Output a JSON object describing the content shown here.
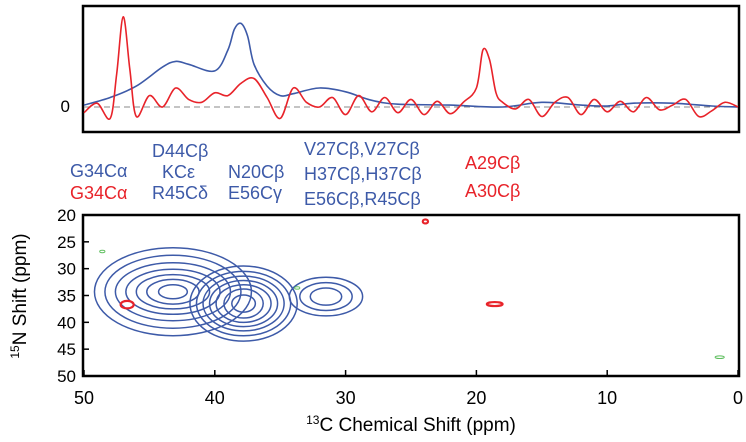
{
  "colors": {
    "blue": "#3d5aa8",
    "red": "#e8232a",
    "green": "#5fbf5f",
    "frame": "#000000",
    "zero_line": "#888888"
  },
  "chart_data": [
    {
      "type": "line",
      "panel": "1D slices",
      "x_range": [
        50,
        0
      ],
      "zero_label": "0",
      "series": [
        {
          "color": "blue",
          "x": [
            50,
            48,
            46,
            44,
            43,
            42,
            40,
            39,
            38.5,
            38,
            37.5,
            37,
            36,
            35,
            34,
            32,
            30,
            28,
            26,
            22,
            18,
            15,
            12,
            10,
            8,
            5,
            2,
            0
          ],
          "y": [
            0.02,
            0.1,
            0.22,
            0.42,
            0.48,
            0.45,
            0.38,
            0.6,
            0.82,
            0.88,
            0.75,
            0.45,
            0.22,
            0.12,
            0.14,
            0.2,
            0.16,
            0.07,
            0.03,
            0.02,
            0.0,
            0.05,
            0.02,
            0.01,
            0.04,
            0.04,
            0.01,
            0.0
          ]
        },
        {
          "color": "red",
          "x": [
            50,
            49,
            48,
            47.5,
            47,
            46.5,
            46,
            45,
            44,
            43,
            42,
            41,
            40,
            39,
            38,
            37,
            36,
            35,
            34,
            33,
            32,
            31,
            30,
            29,
            28,
            27,
            26,
            25,
            24,
            23,
            22,
            21,
            20,
            19.5,
            19,
            18.5,
            18,
            17,
            16,
            15,
            14,
            13,
            12,
            11,
            10,
            9,
            8,
            7,
            6,
            5,
            4,
            3,
            2,
            1,
            0
          ],
          "y": [
            -0.06,
            0.04,
            -0.12,
            0.35,
            0.95,
            0.4,
            -0.1,
            0.12,
            0.0,
            0.2,
            0.08,
            0.05,
            0.15,
            0.12,
            0.25,
            0.3,
            0.1,
            -0.12,
            0.2,
            0.05,
            0.0,
            0.1,
            -0.08,
            0.12,
            -0.05,
            0.1,
            -0.06,
            0.08,
            -0.08,
            0.06,
            -0.07,
            0.05,
            0.2,
            0.6,
            0.5,
            0.15,
            0.05,
            -0.02,
            0.08,
            -0.1,
            0.05,
            0.1,
            -0.08,
            0.08,
            -0.05,
            0.06,
            -0.05,
            0.1,
            -0.03,
            0.02,
            0.08,
            -0.1,
            -0.04,
            0.05,
            0.0
          ]
        }
      ]
    },
    {
      "type": "contour",
      "panel": "2D NCACX",
      "xlabel": "13C Chemical Shift  (ppm)",
      "ylabel": "15N  Shift  (ppm)",
      "xlabel_sup": "13",
      "xlabel_rest": "C Chemical Shift  (ppm)",
      "ylabel_sup": "15",
      "ylabel_rest": "N  Shift  (ppm)",
      "xlim": [
        50,
        0
      ],
      "ylim": [
        20,
        50
      ],
      "x_ticks": [
        50,
        40,
        30,
        20,
        10,
        0
      ],
      "y_ticks": [
        20,
        25,
        30,
        35,
        40,
        45,
        50
      ],
      "x_tick_labels": [
        "50",
        "40",
        "30",
        "20",
        "10",
        "0"
      ],
      "y_tick_labels": [
        "20",
        "25",
        "30",
        "35",
        "40",
        "45",
        "50"
      ],
      "blue_peaks": [
        {
          "cx": 43.2,
          "cy": 34.3,
          "rx": [
            1.1,
            2.0,
            2.8,
            3.6,
            4.4,
            5.2,
            6.0
          ],
          "ry": [
            1.3,
            2.3,
            3.2,
            4.2,
            5.4,
            6.8,
            8.2
          ]
        },
        {
          "cx": 37.8,
          "cy": 36.5,
          "rx": [
            0.9,
            1.5,
            2.1,
            2.6,
            3.1,
            3.6,
            4.1
          ],
          "ry": [
            1.6,
            2.7,
            3.5,
            4.3,
            5.1,
            6.0,
            7.0
          ]
        },
        {
          "cx": 31.5,
          "cy": 35.2,
          "rx": [
            1.2,
            2.0,
            2.8
          ],
          "ry": [
            1.6,
            2.6,
            3.6
          ]
        }
      ],
      "red_peaks": [
        {
          "cx": 46.7,
          "cy": 36.7,
          "rx": 0.5,
          "ry": 0.7
        },
        {
          "cx": 18.6,
          "cy": 36.6,
          "rx": 0.6,
          "ry": 0.3
        },
        {
          "cx": 23.9,
          "cy": 21.2,
          "rx": 0.2,
          "ry": 0.2
        }
      ],
      "green_peaks": [
        {
          "cx": 48.6,
          "cy": 26.8,
          "rx": 0.2,
          "ry": 0.2
        },
        {
          "cx": 33.7,
          "cy": 33.6,
          "rx": 0.2,
          "ry": 0.15
        },
        {
          "cx": 1.4,
          "cy": 46.5,
          "rx": 0.35,
          "ry": 0.25
        }
      ]
    }
  ],
  "annotations": {
    "g34_blue": "G34Cα",
    "g34_red": "G34Cα",
    "d44_1": "D44Cβ",
    "d44_2": "KCε",
    "d44_3": "R45Cδ",
    "n20_1": "N20Cβ",
    "n20_2": "E56Cγ",
    "v27_1": "V27Cβ,V27Cβ",
    "v27_2": "H37Cβ,H37Cβ",
    "v27_3": "E56Cβ,R45Cβ",
    "a29": "A29Cβ",
    "a30": "A30Cβ"
  }
}
